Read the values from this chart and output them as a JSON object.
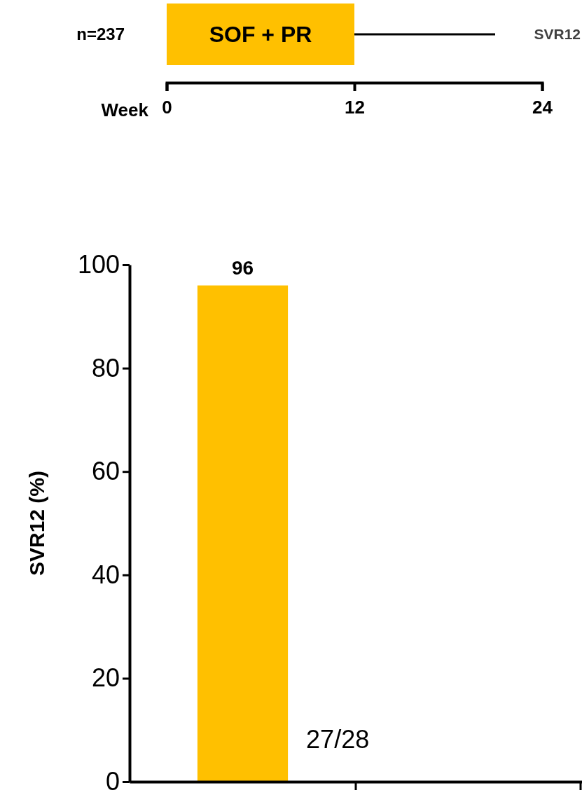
{
  "chart_data": [
    {
      "type": "bar",
      "orientation": "horizontal",
      "categories": [
        "n=237"
      ],
      "xlim": [
        0,
        24
      ],
      "xticks": [
        0,
        12,
        24
      ],
      "xlabel": "Week",
      "series": [
        {
          "type": "bar",
          "base": [
            0
          ],
          "values": [
            12
          ],
          "color": "#ffc000"
        }
      ],
      "annotations": [
        "SOF + PR",
        "SVR12"
      ]
    },
    {
      "type": "bar",
      "categories": [
        null,
        null
      ],
      "values": [
        96,
        null
      ],
      "color": "#ffc000",
      "ylim": [
        0,
        100
      ],
      "yticks": [
        0,
        20,
        40,
        60,
        80,
        100
      ],
      "ylabel": "SVR12 (%)",
      "data_labels": true,
      "annotations": [
        "27/28"
      ]
    }
  ]
}
